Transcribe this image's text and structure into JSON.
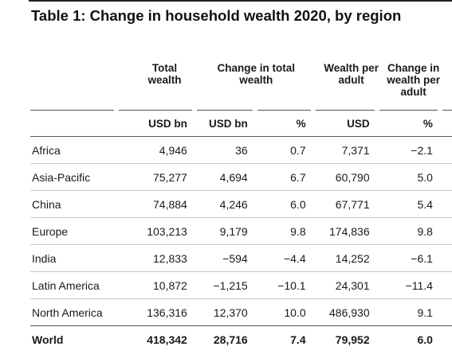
{
  "title": "Table 1: Change in household wealth 2020, by region",
  "columns": {
    "total_wealth": "Total wealth",
    "change_total": "Change in total wealth",
    "wealth_per_adult": "Wealth per adult",
    "change_per_adult": "Change in wealth per adult"
  },
  "units": [
    "USD bn",
    "USD bn",
    "%",
    "USD",
    "%"
  ],
  "rows": [
    {
      "region": "Africa",
      "total": "4,946",
      "chg_bn": "36",
      "chg_pct": "0.7",
      "per_adult": "7,371",
      "chg_adult_pct": "−2.1"
    },
    {
      "region": "Asia-Pacific",
      "total": "75,277",
      "chg_bn": "4,694",
      "chg_pct": "6.7",
      "per_adult": "60,790",
      "chg_adult_pct": "5.0"
    },
    {
      "region": "China",
      "total": "74,884",
      "chg_bn": "4,246",
      "chg_pct": "6.0",
      "per_adult": "67,771",
      "chg_adult_pct": "5.4"
    },
    {
      "region": "Europe",
      "total": "103,213",
      "chg_bn": "9,179",
      "chg_pct": "9.8",
      "per_adult": "174,836",
      "chg_adult_pct": "9.8"
    },
    {
      "region": "India",
      "total": "12,833",
      "chg_bn": "−594",
      "chg_pct": "−4.4",
      "per_adult": "14,252",
      "chg_adult_pct": "−6.1"
    },
    {
      "region": "Latin America",
      "total": "10,872",
      "chg_bn": "−1,215",
      "chg_pct": "−10.1",
      "per_adult": "24,301",
      "chg_adult_pct": "−11.4"
    },
    {
      "region": "North America",
      "total": "136,316",
      "chg_bn": "12,370",
      "chg_pct": "10.0",
      "per_adult": "486,930",
      "chg_adult_pct": "9.1"
    }
  ],
  "total_row": {
    "region": "World",
    "total": "418,342",
    "chg_bn": "28,716",
    "chg_pct": "7.4",
    "per_adult": "79,952",
    "chg_adult_pct": "6.0"
  }
}
